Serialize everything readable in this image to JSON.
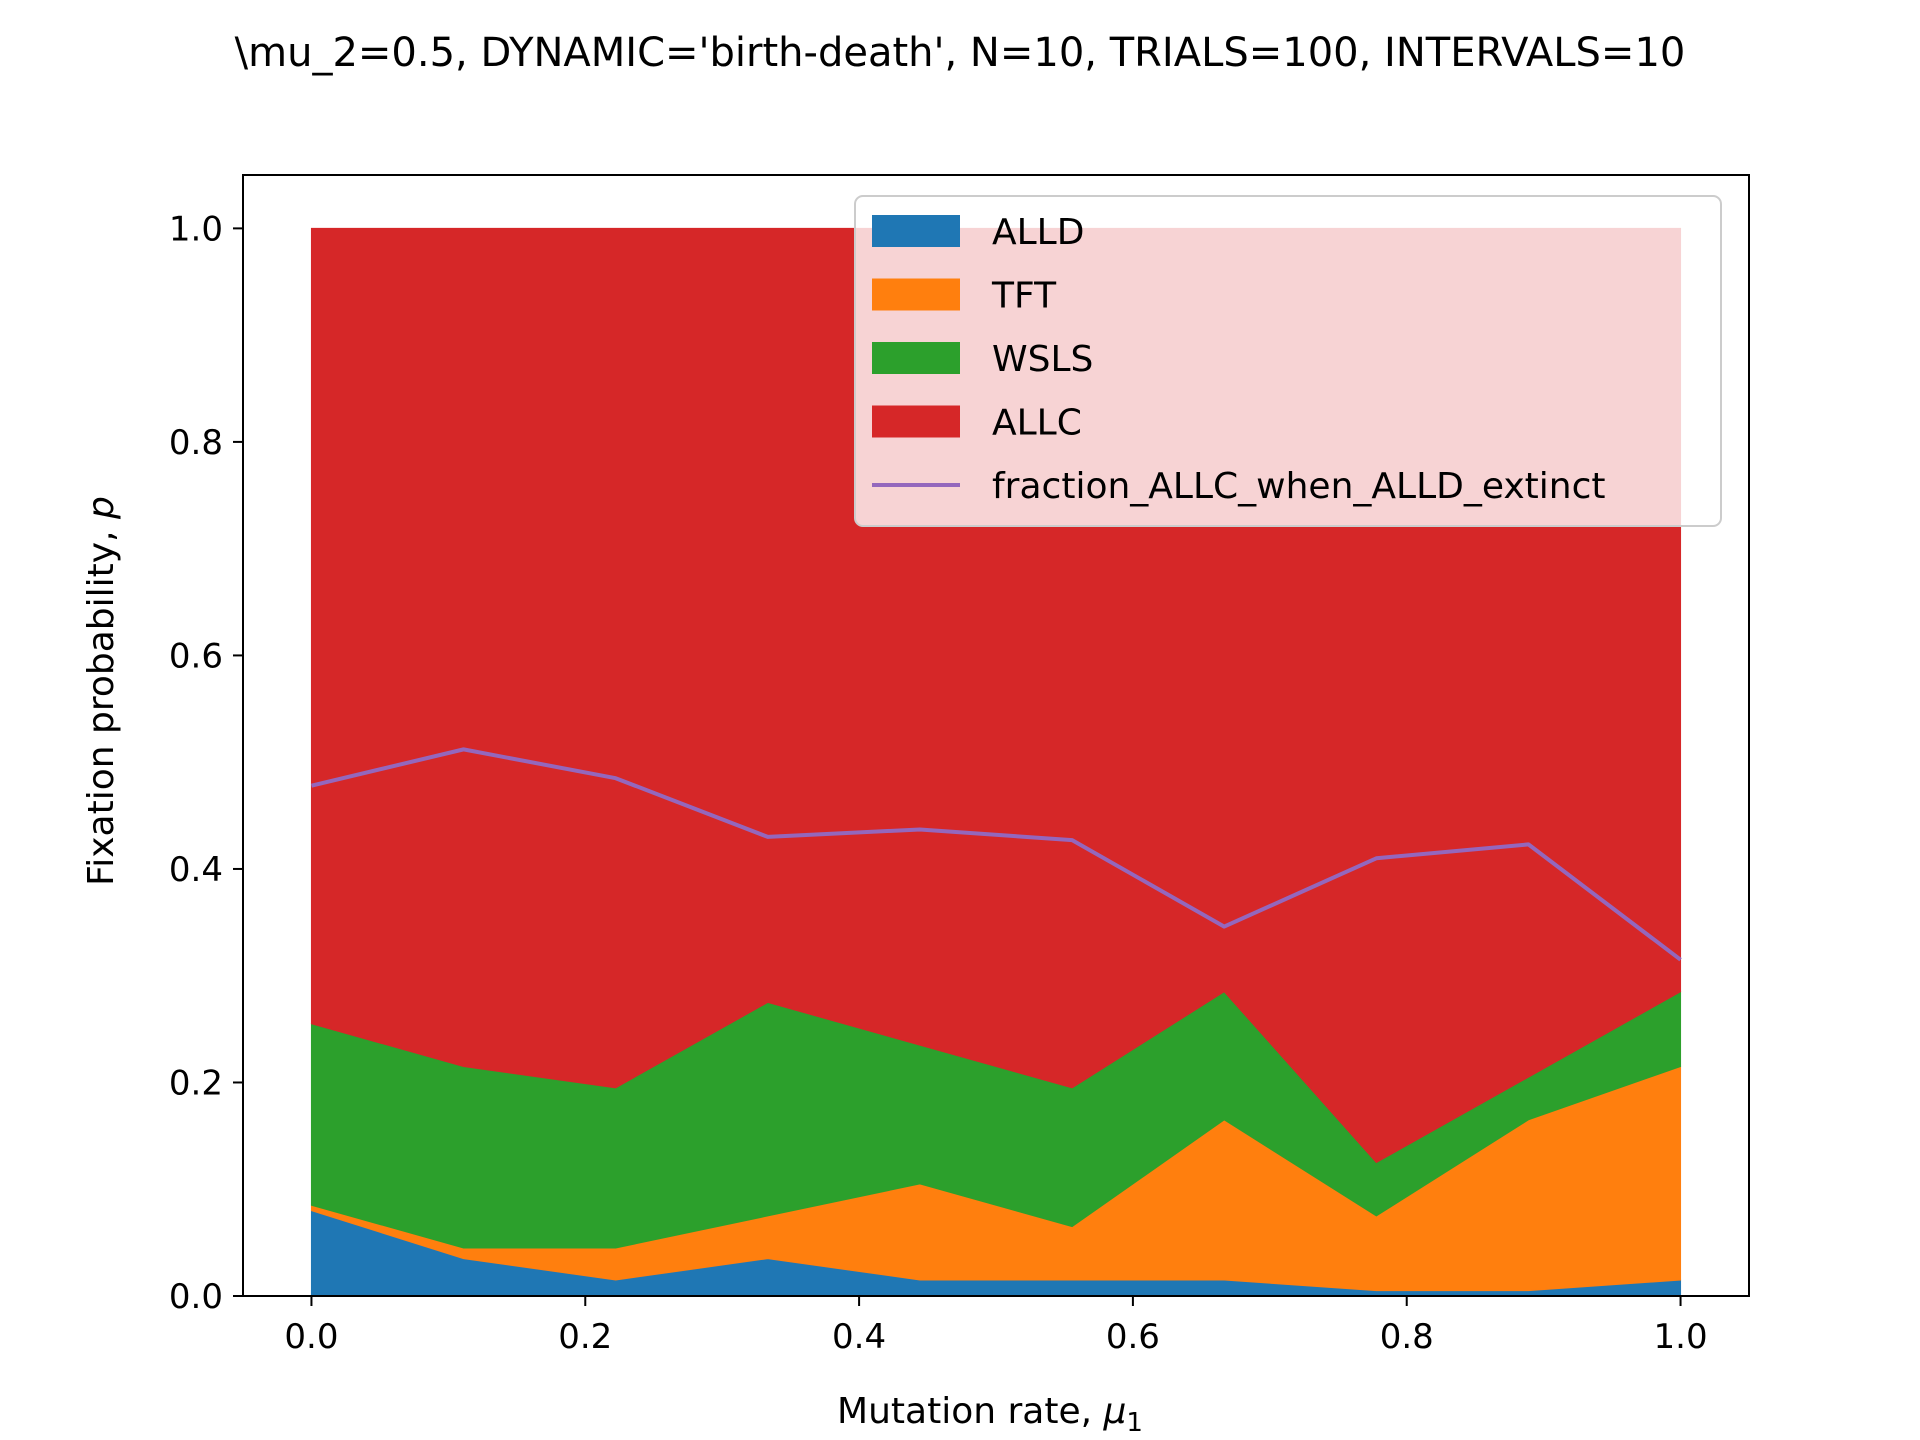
{
  "chart_data": {
    "type": "area",
    "stacked": true,
    "title": "\\mu_2=0.5, DYNAMIC='birth-death', N=10, TRIALS=100, INTERVALS=10",
    "xlabel": "Mutation rate, ",
    "xlabel_symbol": "μ",
    "xlabel_subscript": "1",
    "ylabel": "Fixation probability, ",
    "ylabel_symbol": "p",
    "xlim": [
      -0.05,
      1.05
    ],
    "ylim": [
      0,
      1.05
    ],
    "xticks": [
      0.0,
      0.2,
      0.4,
      0.6,
      0.8,
      1.0
    ],
    "xtick_labels": [
      "0.0",
      "0.2",
      "0.4",
      "0.6",
      "0.8",
      "1.0"
    ],
    "yticks": [
      0.0,
      0.2,
      0.4,
      0.6,
      0.8,
      1.0
    ],
    "ytick_labels": [
      "0.0",
      "0.2",
      "0.4",
      "0.6",
      "0.8",
      "1.0"
    ],
    "grid": false,
    "legend_position": "top-right",
    "x": [
      0.0,
      0.1111,
      0.2222,
      0.3333,
      0.4444,
      0.5556,
      0.6667,
      0.7778,
      0.8889,
      1.0
    ],
    "series": [
      {
        "name": "ALLD",
        "kind": "area",
        "color": "#1f77b4",
        "values": [
          0.08,
          0.035,
          0.015,
          0.035,
          0.015,
          0.015,
          0.015,
          0.005,
          0.005,
          0.015
        ]
      },
      {
        "name": "TFT",
        "kind": "area",
        "color": "#ff7f0e",
        "values": [
          0.005,
          0.01,
          0.03,
          0.04,
          0.09,
          0.05,
          0.15,
          0.07,
          0.16,
          0.2
        ]
      },
      {
        "name": "WSLS",
        "kind": "area",
        "color": "#2ca02c",
        "values": [
          0.17,
          0.17,
          0.15,
          0.2,
          0.13,
          0.13,
          0.12,
          0.05,
          0.04,
          0.07
        ]
      },
      {
        "name": "ALLC",
        "kind": "area",
        "color": "#d62728",
        "values": [
          0.745,
          0.785,
          0.805,
          0.725,
          0.765,
          0.805,
          0.715,
          0.875,
          0.795,
          0.715
        ]
      },
      {
        "name": "fraction_ALLC_when_ALLD_extinct",
        "kind": "line",
        "color": "#9467bd",
        "values": [
          0.478,
          0.512,
          0.485,
          0.43,
          0.437,
          0.427,
          0.346,
          0.41,
          0.423,
          0.315
        ]
      }
    ]
  }
}
